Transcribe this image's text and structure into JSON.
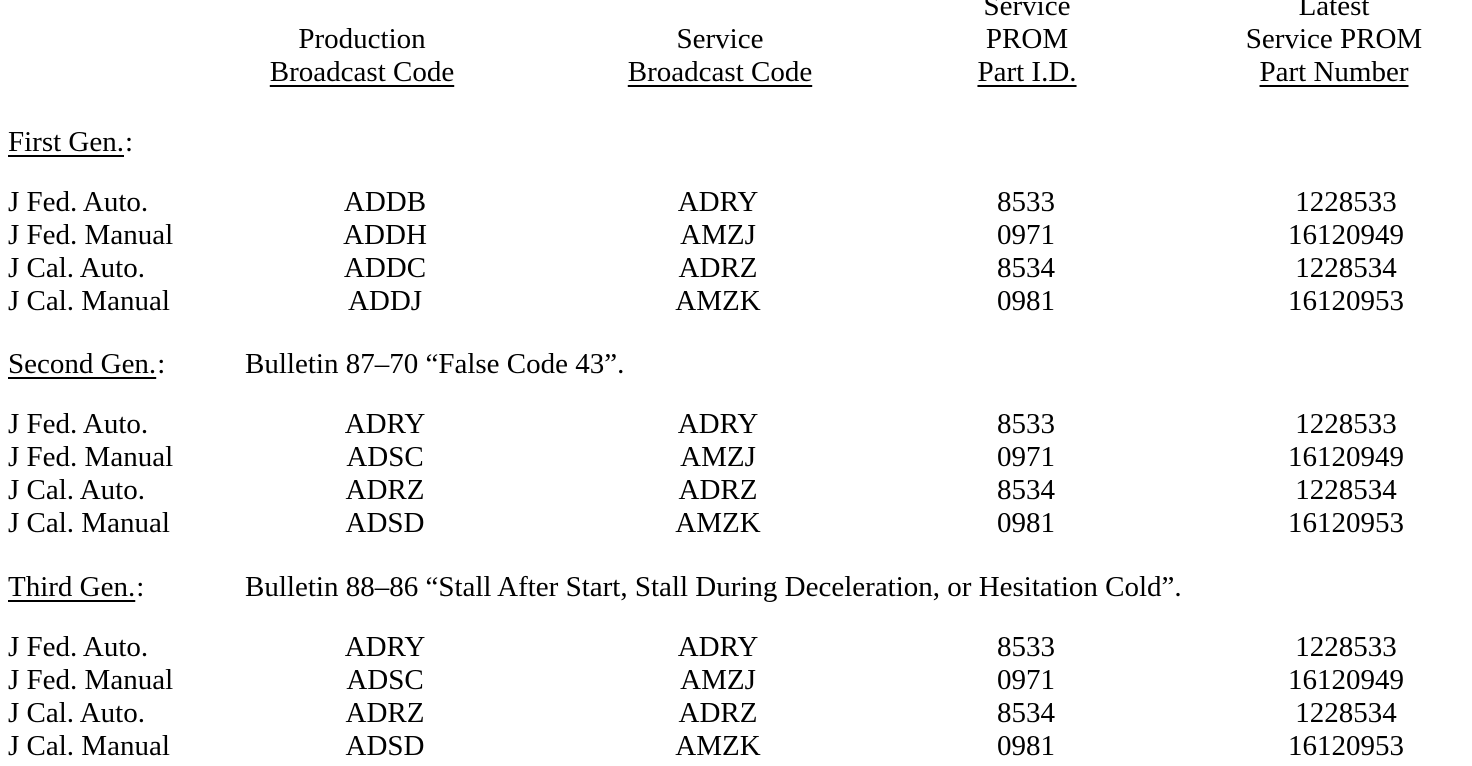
{
  "header": {
    "columns": [
      {
        "lines": [
          "Production",
          "Broadcast Code"
        ]
      },
      {
        "lines": [
          "Service",
          "Broadcast Code"
        ]
      },
      {
        "lines": [
          "Service",
          "PROM",
          "Part I.D."
        ]
      },
      {
        "lines": [
          "Latest",
          "Service PROM",
          "Part Number"
        ]
      }
    ]
  },
  "sections": [
    {
      "label": "First Gen.",
      "suffix": ":",
      "note": null,
      "rows": [
        [
          "J Fed. Auto.",
          "ADDB",
          "ADRY",
          "8533",
          "1228533"
        ],
        [
          "J Fed. Manual",
          "ADDH",
          "AMZJ",
          "0971",
          "16120949"
        ],
        [
          "J Cal. Auto.",
          "ADDC",
          "ADRZ",
          "8534",
          "1228534"
        ],
        [
          "J Cal. Manual",
          "ADDJ",
          "AMZK",
          "0981",
          "16120953"
        ]
      ]
    },
    {
      "label": "Second Gen.",
      "suffix": ":",
      "note": "Bulletin 87–70 “False Code 43”.",
      "rows": [
        [
          "J Fed. Auto.",
          "ADRY",
          "ADRY",
          "8533",
          "1228533"
        ],
        [
          "J Fed. Manual",
          "ADSC",
          "AMZJ",
          "0971",
          "16120949"
        ],
        [
          "J Cal. Auto.",
          "ADRZ",
          "ADRZ",
          "8534",
          "1228534"
        ],
        [
          "J Cal. Manual",
          "ADSD",
          "AMZK",
          "0981",
          "16120953"
        ]
      ]
    },
    {
      "label": "Third Gen.",
      "suffix": ":",
      "note": "Bulletin 88–86 “Stall After Start, Stall During Deceleration, or Hesitation Cold”.",
      "rows": [
        [
          "J Fed. Auto.",
          "ADRY",
          "ADRY",
          "8533",
          "1228533"
        ],
        [
          "J Fed. Manual",
          "ADSC",
          "AMZJ",
          "0971",
          "16120949"
        ],
        [
          "J Cal. Auto.",
          "ADRZ",
          "ADRZ",
          "8534",
          "1228534"
        ],
        [
          "J Cal. Manual",
          "ADSD",
          "AMZK",
          "0981",
          "16120953"
        ]
      ]
    }
  ]
}
